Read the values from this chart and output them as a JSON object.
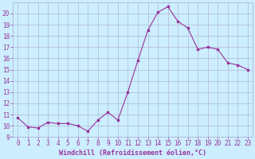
{
  "x": [
    0,
    1,
    2,
    3,
    4,
    5,
    6,
    7,
    8,
    9,
    10,
    11,
    12,
    13,
    14,
    15,
    16,
    17,
    18,
    19,
    20,
    21,
    22,
    23
  ],
  "y": [
    10.7,
    9.9,
    9.8,
    10.3,
    10.2,
    10.2,
    10.0,
    9.5,
    10.5,
    11.2,
    10.5,
    13.0,
    15.8,
    18.5,
    20.1,
    20.6,
    19.3,
    18.7,
    16.8,
    17.0,
    16.8,
    15.6,
    15.4,
    15.0
  ],
  "line_color": "#993399",
  "marker": "s",
  "markersize": 1.8,
  "linewidth": 0.8,
  "bg_color": "#cceeff",
  "grid_color": "#aaaacc",
  "xlabel": "Windchill (Refroidissement éolien,°C)",
  "tick_color": "#993399",
  "ylim": [
    9,
    21
  ],
  "yticks": [
    9,
    10,
    11,
    12,
    13,
    14,
    15,
    16,
    17,
    18,
    19,
    20
  ],
  "xticks": [
    0,
    1,
    2,
    3,
    4,
    5,
    6,
    7,
    8,
    9,
    10,
    11,
    12,
    13,
    14,
    15,
    16,
    17,
    18,
    19,
    20,
    21,
    22,
    23
  ]
}
